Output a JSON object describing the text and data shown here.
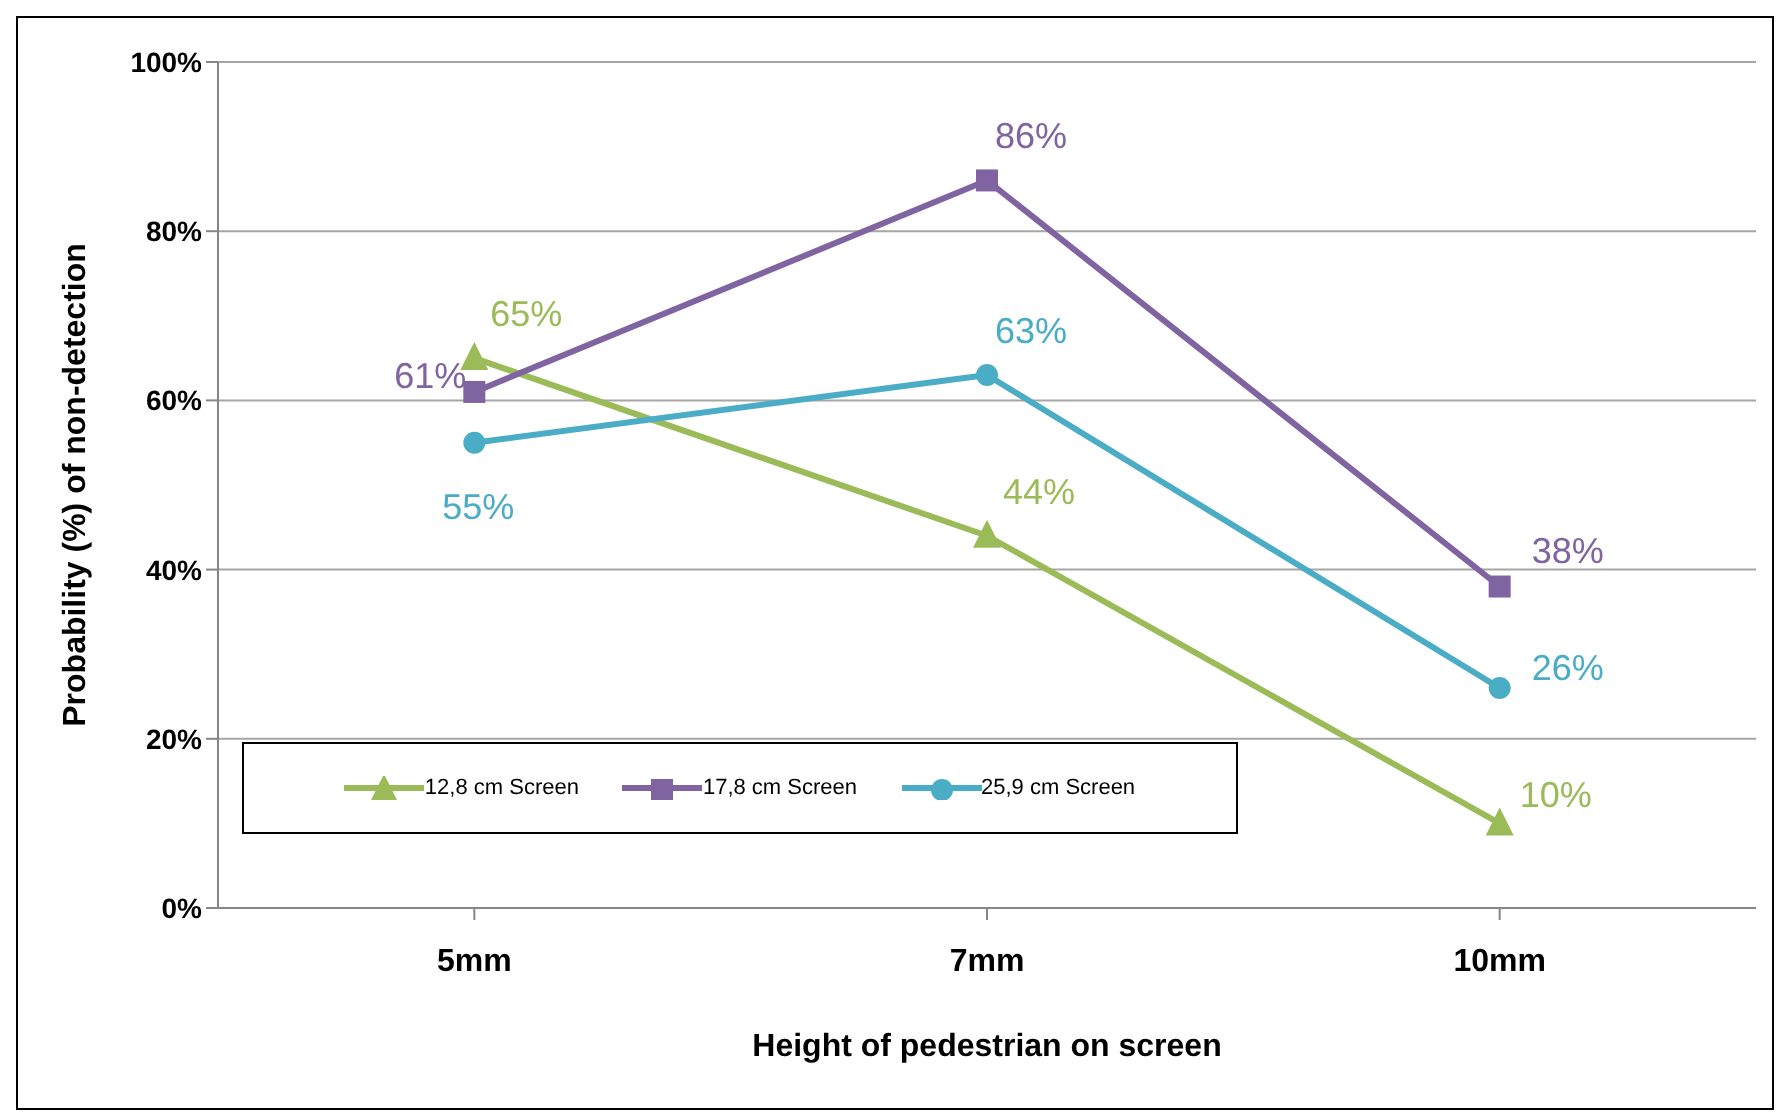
{
  "chart_data": {
    "type": "line",
    "xlabel": "Height of pedestrian on screen",
    "ylabel": "Probability (%) of non-detection",
    "categories": [
      "5mm",
      "7mm",
      "10mm"
    ],
    "series": [
      {
        "name": "12,8 cm Screen",
        "color": "#9bbb59",
        "values": [
          65,
          44,
          10
        ],
        "marker": "triangle",
        "value_labels": [
          "65%",
          "44%",
          "10%"
        ]
      },
      {
        "name": "17,8 cm Screen",
        "color": "#8064a2",
        "values": [
          61,
          86,
          38
        ],
        "marker": "square",
        "value_labels": [
          "61%",
          "86%",
          "38%"
        ]
      },
      {
        "name": "25,9 cm Screen",
        "color": "#4bacc6",
        "values": [
          55,
          63,
          26
        ],
        "marker": "circle",
        "value_labels": [
          "55%",
          "63%",
          "26%"
        ]
      }
    ],
    "ylim": [
      0,
      100
    ],
    "yticks": [
      {
        "value": 0,
        "label": "0%"
      },
      {
        "value": 20,
        "label": "20%"
      },
      {
        "value": 40,
        "label": "40%"
      },
      {
        "value": 60,
        "label": "60%"
      },
      {
        "value": 80,
        "label": "80%"
      },
      {
        "value": 100,
        "label": "100%"
      }
    ],
    "grid": "y",
    "legend": "bottom left",
    "line_style": "solid"
  }
}
